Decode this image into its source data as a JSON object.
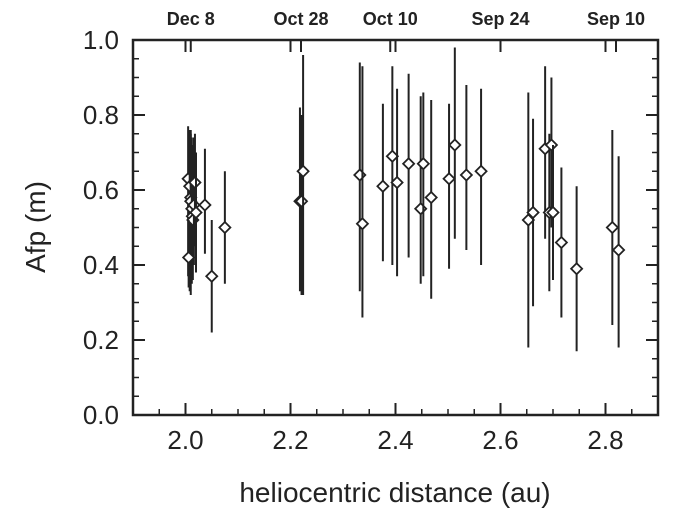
{
  "chart_data": {
    "type": "scatter",
    "xlabel": "heliocentric distance (au)",
    "ylabel": "Afp (m)",
    "xlim": [
      1.9,
      2.9
    ],
    "ylim": [
      0.0,
      1.0
    ],
    "xticks": [
      {
        "value": 2.0,
        "label": "2.0"
      },
      {
        "value": 2.2,
        "label": "2.2"
      },
      {
        "value": 2.4,
        "label": "2.4"
      },
      {
        "value": 2.6,
        "label": "2.6"
      },
      {
        "value": 2.8,
        "label": "2.8"
      }
    ],
    "yticks": [
      {
        "value": 0.0,
        "label": "0.0"
      },
      {
        "value": 0.2,
        "label": "0.2"
      },
      {
        "value": 0.4,
        "label": "0.4"
      },
      {
        "value": 0.6,
        "label": "0.6"
      },
      {
        "value": 0.8,
        "label": "0.8"
      },
      {
        "value": 1.0,
        "label": "1.0"
      }
    ],
    "top_axis": [
      {
        "value": 2.01,
        "label": "Dec 8"
      },
      {
        "value": 2.22,
        "label": "Oct 28"
      },
      {
        "value": 2.39,
        "label": "Oct 10"
      },
      {
        "value": 2.6,
        "label": "Sep 24"
      },
      {
        "value": 2.82,
        "label": "Sep 10"
      }
    ],
    "grid": false,
    "marker": "diamond",
    "points": [
      {
        "x": 2.005,
        "y": 0.63,
        "ylow": 0.37,
        "yhigh": 0.77
      },
      {
        "x": 2.008,
        "y": 0.61,
        "ylow": 0.33,
        "yhigh": 0.76
      },
      {
        "x": 2.01,
        "y": 0.58,
        "ylow": 0.32,
        "yhigh": 0.75
      },
      {
        "x": 2.01,
        "y": 0.57,
        "ylow": 0.36,
        "yhigh": 0.76
      },
      {
        "x": 2.012,
        "y": 0.55,
        "ylow": 0.35,
        "yhigh": 0.74
      },
      {
        "x": 2.013,
        "y": 0.53,
        "ylow": 0.38,
        "yhigh": 0.7
      },
      {
        "x": 2.014,
        "y": 0.52,
        "ylow": 0.36,
        "yhigh": 0.72
      },
      {
        "x": 2.016,
        "y": 0.56,
        "ylow": 0.4,
        "yhigh": 0.74
      },
      {
        "x": 2.018,
        "y": 0.62,
        "ylow": 0.45,
        "yhigh": 0.75
      },
      {
        "x": 2.006,
        "y": 0.42,
        "ylow": 0.34,
        "yhigh": 0.52
      },
      {
        "x": 2.02,
        "y": 0.54,
        "ylow": 0.38,
        "yhigh": 0.7
      },
      {
        "x": 2.037,
        "y": 0.56,
        "ylow": 0.43,
        "yhigh": 0.71
      },
      {
        "x": 2.05,
        "y": 0.37,
        "ylow": 0.22,
        "yhigh": 0.52
      },
      {
        "x": 2.075,
        "y": 0.5,
        "ylow": 0.35,
        "yhigh": 0.65
      },
      {
        "x": 2.218,
        "y": 0.57,
        "ylow": 0.33,
        "yhigh": 0.82
      },
      {
        "x": 2.221,
        "y": 0.57,
        "ylow": 0.32,
        "yhigh": 0.8
      },
      {
        "x": 2.224,
        "y": 0.65,
        "ylow": 0.32,
        "yhigh": 0.96
      },
      {
        "x": 2.332,
        "y": 0.64,
        "ylow": 0.33,
        "yhigh": 0.94
      },
      {
        "x": 2.337,
        "y": 0.51,
        "ylow": 0.26,
        "yhigh": 0.93
      },
      {
        "x": 2.376,
        "y": 0.61,
        "ylow": 0.41,
        "yhigh": 0.83
      },
      {
        "x": 2.394,
        "y": 0.69,
        "ylow": 0.4,
        "yhigh": 0.93
      },
      {
        "x": 2.403,
        "y": 0.62,
        "ylow": 0.37,
        "yhigh": 0.87
      },
      {
        "x": 2.425,
        "y": 0.67,
        "ylow": 0.42,
        "yhigh": 0.91
      },
      {
        "x": 2.448,
        "y": 0.55,
        "ylow": 0.35,
        "yhigh": 0.85
      },
      {
        "x": 2.453,
        "y": 0.67,
        "ylow": 0.37,
        "yhigh": 0.86
      },
      {
        "x": 2.468,
        "y": 0.58,
        "ylow": 0.31,
        "yhigh": 0.84
      },
      {
        "x": 2.502,
        "y": 0.63,
        "ylow": 0.39,
        "yhigh": 0.83
      },
      {
        "x": 2.513,
        "y": 0.72,
        "ylow": 0.47,
        "yhigh": 0.98
      },
      {
        "x": 2.535,
        "y": 0.64,
        "ylow": 0.44,
        "yhigh": 0.88
      },
      {
        "x": 2.563,
        "y": 0.65,
        "ylow": 0.4,
        "yhigh": 0.87
      },
      {
        "x": 2.653,
        "y": 0.52,
        "ylow": 0.18,
        "yhigh": 0.86
      },
      {
        "x": 2.662,
        "y": 0.54,
        "ylow": 0.29,
        "yhigh": 0.79
      },
      {
        "x": 2.685,
        "y": 0.71,
        "ylow": 0.47,
        "yhigh": 0.93
      },
      {
        "x": 2.693,
        "y": 0.54,
        "ylow": 0.33,
        "yhigh": 0.75
      },
      {
        "x": 2.697,
        "y": 0.72,
        "ylow": 0.5,
        "yhigh": 0.9
      },
      {
        "x": 2.7,
        "y": 0.54,
        "ylow": 0.36,
        "yhigh": 0.72
      },
      {
        "x": 2.716,
        "y": 0.46,
        "ylow": 0.26,
        "yhigh": 0.66
      },
      {
        "x": 2.745,
        "y": 0.39,
        "ylow": 0.17,
        "yhigh": 0.61
      },
      {
        "x": 2.813,
        "y": 0.5,
        "ylow": 0.24,
        "yhigh": 0.76
      },
      {
        "x": 2.825,
        "y": 0.44,
        "ylow": 0.18,
        "yhigh": 0.69
      }
    ]
  }
}
